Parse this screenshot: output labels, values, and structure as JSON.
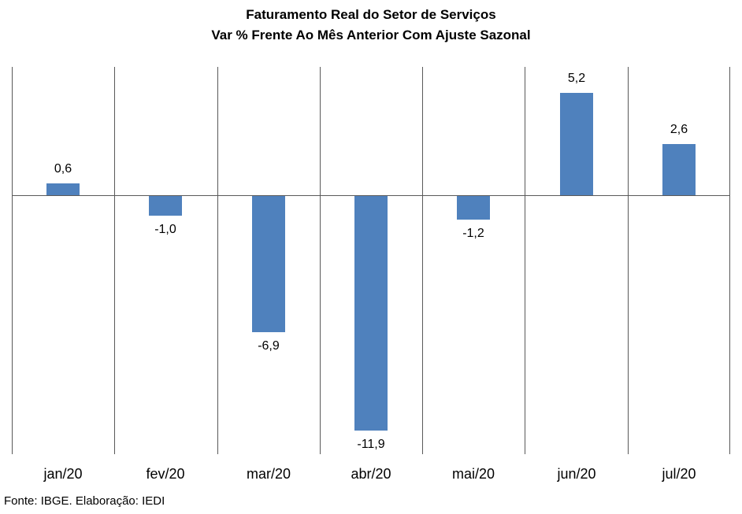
{
  "title": {
    "line1": "Faturamento Real do Setor de Serviços",
    "line2": "Var % Frente Ao Mês Anterior Com Ajuste Sazonal"
  },
  "footer": "Fonte: IBGE. Elaboração: IEDI",
  "colors": {
    "bar": "#4F81BD",
    "grid": "#595959",
    "axis": "#595959",
    "text": "#000000",
    "background": "#FFFFFF"
  },
  "chart_data": {
    "type": "bar",
    "title": "Faturamento Real do Setor de Serviços",
    "subtitle": "Var % Frente Ao Mês Anterior Com Ajuste Sazonal",
    "categories": [
      "jan/20",
      "fev/20",
      "mar/20",
      "abr/20",
      "mai/20",
      "jun/20",
      "jul/20"
    ],
    "values": [
      0.6,
      -1.0,
      -6.9,
      -11.9,
      -1.2,
      5.2,
      2.6
    ],
    "value_labels": [
      "0,6",
      "-1,0",
      "-6,9",
      "-11,9",
      "-1,2",
      "5,2",
      "2,6"
    ],
    "xlabel": "",
    "ylabel": "",
    "ylim": [
      -13.16,
      6.52
    ],
    "grid": "vertical category separators only, no horizontal gridlines, zero axis line shown",
    "legend_position": "none",
    "decimal_separator": ","
  }
}
